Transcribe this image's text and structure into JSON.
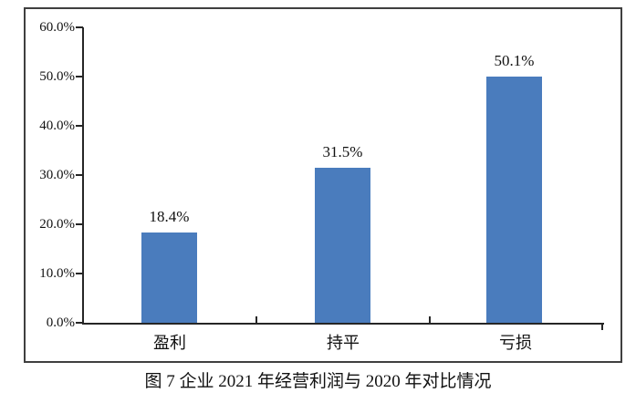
{
  "chart_data": {
    "type": "bar",
    "caption": "图 7  企业 2021 年经营利润与 2020 年对比情况",
    "categories": [
      "盈利",
      "持平",
      "亏损"
    ],
    "values": [
      18.4,
      31.5,
      50.1
    ],
    "data_labels": [
      "18.4%",
      "31.5%",
      "50.1%"
    ],
    "y_ticks": [
      "60.0%",
      "50.0%",
      "40.0%",
      "30.0%",
      "20.0%",
      "10.0%",
      "0.0%"
    ],
    "ylim": [
      0,
      60
    ],
    "xlabel": "",
    "ylabel": "",
    "grid": false,
    "legend": "none",
    "bar_color": "#4A7CBD",
    "frame_color": "#3f3f3f",
    "axis_color": "#262626"
  }
}
